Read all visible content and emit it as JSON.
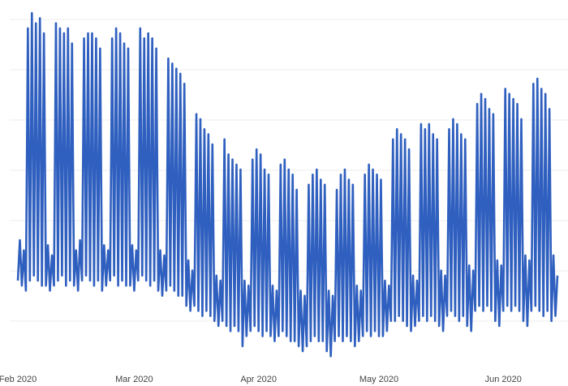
{
  "chart_data": {
    "type": "line",
    "series": [
      {
        "color": "#2f5fbf",
        "values": [
          1.8,
          2.6,
          1.7,
          2.4,
          1.6,
          6.8,
          1.8,
          7.1,
          1.9,
          6.9,
          1.8,
          7.0,
          1.7,
          6.7,
          1.7,
          2.5,
          1.6,
          2.3,
          1.7,
          6.9,
          1.8,
          6.8,
          1.9,
          6.7,
          1.7,
          6.8,
          1.8,
          6.5,
          1.7,
          2.4,
          1.6,
          2.6,
          1.8,
          6.6,
          1.9,
          6.7,
          1.8,
          6.7,
          1.7,
          6.6,
          1.8,
          6.4,
          1.6,
          2.5,
          1.7,
          2.4,
          1.8,
          6.6,
          1.9,
          6.8,
          1.7,
          6.7,
          1.8,
          6.5,
          1.7,
          6.4,
          1.7,
          2.5,
          1.6,
          2.4,
          1.8,
          6.8,
          1.9,
          6.6,
          1.8,
          6.7,
          1.7,
          6.6,
          1.8,
          6.4,
          1.6,
          2.4,
          1.5,
          2.3,
          1.6,
          6.2,
          1.7,
          6.1,
          1.6,
          6.0,
          1.5,
          5.9,
          1.5,
          5.7,
          1.3,
          2.2,
          1.2,
          2.0,
          1.3,
          5.1,
          1.2,
          5.0,
          1.1,
          4.8,
          1.2,
          4.7,
          1.1,
          4.5,
          1.0,
          1.9,
          0.9,
          1.8,
          1.0,
          4.6,
          0.9,
          4.3,
          0.8,
          4.2,
          0.9,
          4.1,
          0.8,
          4.0,
          0.5,
          1.8,
          0.7,
          1.7,
          0.8,
          4.2,
          0.9,
          4.4,
          0.8,
          4.3,
          0.7,
          4.0,
          0.8,
          3.9,
          0.7,
          1.7,
          0.6,
          1.6,
          0.7,
          4.1,
          0.8,
          4.2,
          0.7,
          4.0,
          0.6,
          3.9,
          0.6,
          3.6,
          0.5,
          1.6,
          0.4,
          1.5,
          0.5,
          3.7,
          0.6,
          3.9,
          0.7,
          4.0,
          0.6,
          3.8,
          0.6,
          3.7,
          0.4,
          1.6,
          0.3,
          1.5,
          0.6,
          3.6,
          0.7,
          3.9,
          0.6,
          4.0,
          0.7,
          3.8,
          0.6,
          3.7,
          0.5,
          1.7,
          0.6,
          1.6,
          0.7,
          3.9,
          0.8,
          4.1,
          0.7,
          4.0,
          0.8,
          3.9,
          0.7,
          3.8,
          0.7,
          1.8,
          0.8,
          1.7,
          1.0,
          4.6,
          1.0,
          4.8,
          1.1,
          4.7,
          1.0,
          4.6,
          0.9,
          4.4,
          0.8,
          1.9,
          0.9,
          1.8,
          1.0,
          4.9,
          1.1,
          4.8,
          1.0,
          4.9,
          1.1,
          4.7,
          1.0,
          4.6,
          0.9,
          2.0,
          0.8,
          1.9,
          1.1,
          4.8,
          1.2,
          5.0,
          1.1,
          4.9,
          1.0,
          4.7,
          1.1,
          4.6,
          0.9,
          2.1,
          0.8,
          2.0,
          1.2,
          5.3,
          1.3,
          5.5,
          1.2,
          5.4,
          1.3,
          5.2,
          1.2,
          5.1,
          1.0,
          2.2,
          0.9,
          2.1,
          1.2,
          5.6,
          1.3,
          5.5,
          1.2,
          5.4,
          1.3,
          5.3,
          1.2,
          5.0,
          1.0,
          2.3,
          0.9,
          2.2,
          1.2,
          5.7,
          1.3,
          5.8,
          1.2,
          5.6,
          1.1,
          5.5,
          1.2,
          5.2,
          1.0,
          2.3,
          1.1,
          1.9
        ]
      }
    ],
    "xlim": [
      0,
      269
    ],
    "xticks": [
      {
        "value": 0,
        "label": "Feb 2020"
      },
      {
        "value": 58,
        "label": "Mar 2020"
      },
      {
        "value": 120,
        "label": "Apr 2020"
      },
      {
        "value": 180,
        "label": "May 2020"
      },
      {
        "value": 242,
        "label": "Jun 2020"
      }
    ],
    "ylim": [
      0,
      7.2
    ]
  }
}
